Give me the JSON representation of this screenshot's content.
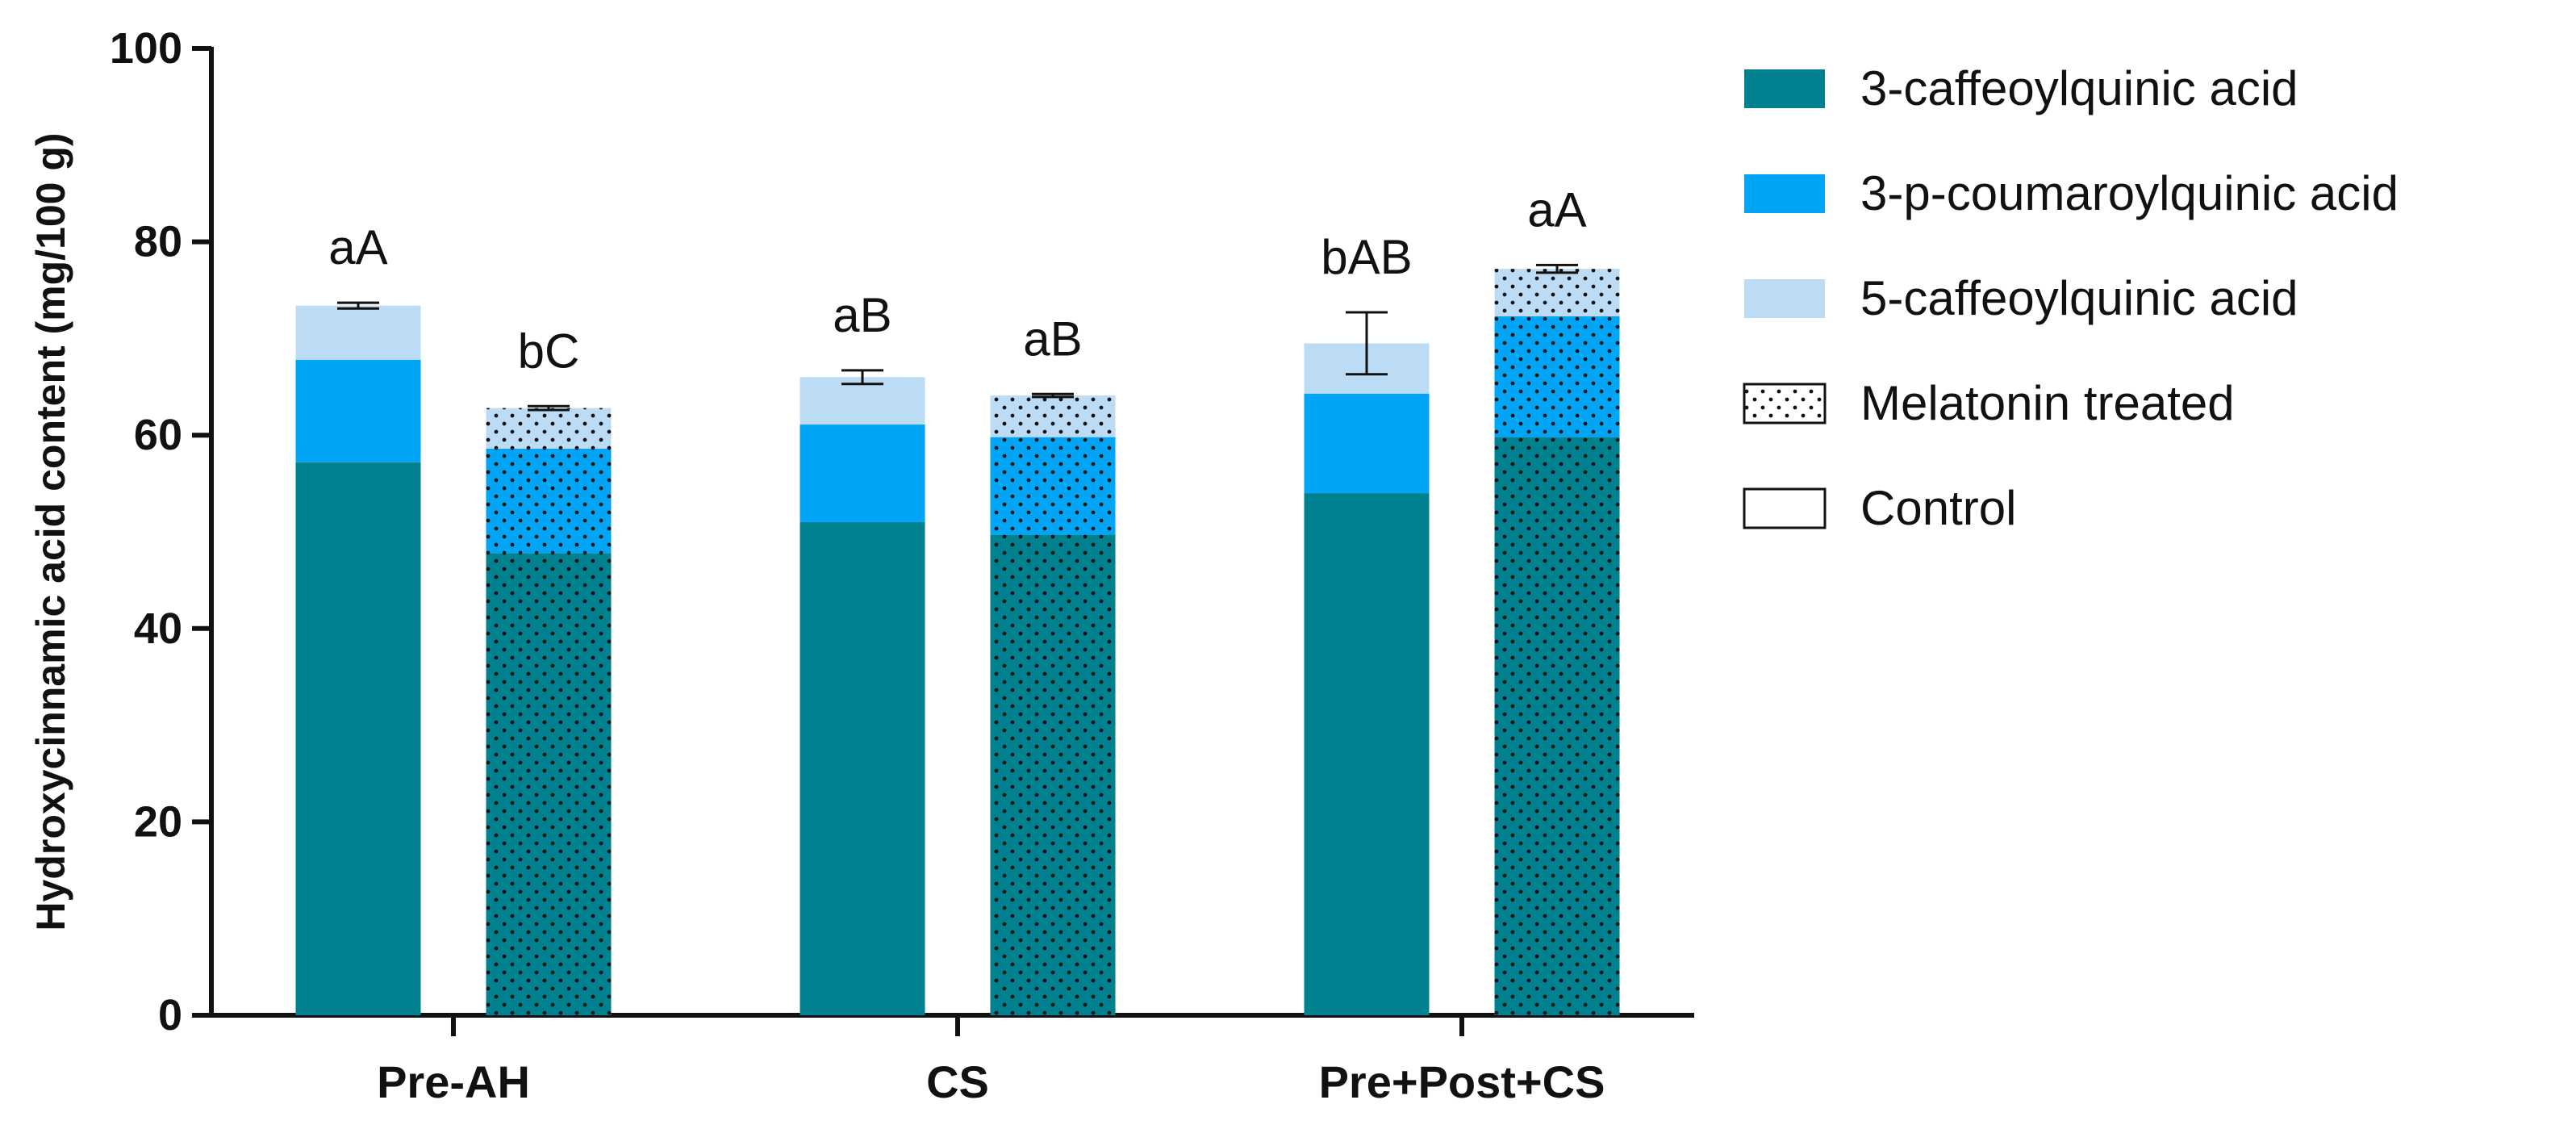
{
  "chart_data": {
    "type": "bar",
    "stacked": true,
    "ylabel": "Hydroxycinnamic acid content (mg/100 g)",
    "xlabel": "",
    "ylim": [
      0,
      100
    ],
    "yticks": [
      0,
      20,
      40,
      60,
      80,
      100
    ],
    "grid": false,
    "legend_position": "right",
    "groups": [
      "Pre-AH",
      "CS",
      "Pre+Post+CS"
    ],
    "treatments": [
      "Control",
      "Melatonin treated"
    ],
    "series": [
      {
        "name": "3-caffeoylquinic acid",
        "color": "#00818F",
        "values": [
          [
            57.2,
            47.8
          ],
          [
            51.0,
            49.7
          ],
          [
            54.0,
            59.8
          ]
        ]
      },
      {
        "name": "3-p-coumaroylquinic acid",
        "color": "#00A6F5",
        "values": [
          [
            10.6,
            10.8
          ],
          [
            10.1,
            10.1
          ],
          [
            10.3,
            12.5
          ]
        ]
      },
      {
        "name": "5-caffeoylquinic acid",
        "color": "#BCDCF6",
        "values": [
          [
            5.6,
            4.2
          ],
          [
            4.9,
            4.3
          ],
          [
            5.2,
            4.9
          ]
        ]
      }
    ],
    "error_bars": [
      [
        0.3,
        0.2
      ],
      [
        0.7,
        0.15
      ],
      [
        3.2,
        0.4
      ]
    ],
    "annotations": [
      [
        "aA",
        "bC"
      ],
      [
        "aB",
        "aB"
      ],
      [
        "bAB",
        "aA"
      ]
    ],
    "legend": [
      {
        "label": "3-caffeoylquinic acid",
        "swatch": "series",
        "color": "#00818F"
      },
      {
        "label": "3-p-coumaroylquinic acid",
        "swatch": "series",
        "color": "#00A6F5"
      },
      {
        "label": "5-caffeoylquinic acid",
        "swatch": "series",
        "color": "#BCDCF6"
      },
      {
        "label": "Melatonin treated",
        "swatch": "dotted"
      },
      {
        "label": "Control",
        "swatch": "empty"
      }
    ]
  }
}
